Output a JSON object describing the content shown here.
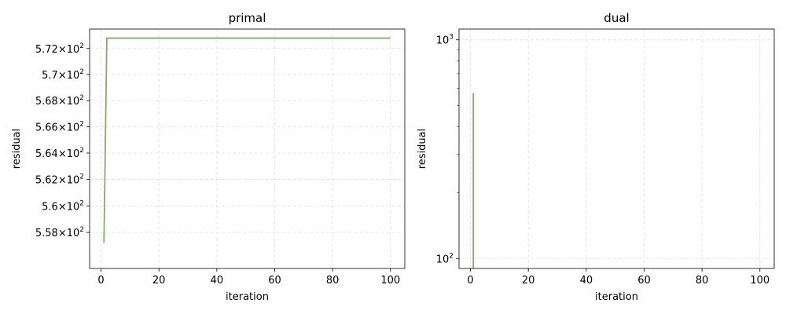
{
  "chart_data": [
    {
      "type": "line",
      "title": "primal",
      "xlabel": "iteration",
      "ylabel": "residual",
      "yscale": "log",
      "xlim": [
        -3.95,
        104.95
      ],
      "ylim": [
        555.3,
        573.5
      ],
      "x_ticks": [
        0,
        20,
        40,
        60,
        80,
        100
      ],
      "x_tick_labels": [
        "0",
        "20",
        "40",
        "60",
        "80",
        "100"
      ],
      "y_ticks": [
        558,
        560,
        562,
        564,
        566,
        568,
        570,
        572
      ],
      "y_tick_labels": [
        {
          "mantissa": "5.58",
          "base": "10",
          "exp": "2"
        },
        {
          "mantissa": "5.6",
          "base": "10",
          "exp": "2"
        },
        {
          "mantissa": "5.62",
          "base": "10",
          "exp": "2"
        },
        {
          "mantissa": "5.64",
          "base": "10",
          "exp": "2"
        },
        {
          "mantissa": "5.66",
          "base": "10",
          "exp": "2"
        },
        {
          "mantissa": "5.68",
          "base": "10",
          "exp": "2"
        },
        {
          "mantissa": "5.7",
          "base": "10",
          "exp": "2"
        },
        {
          "mantissa": "5.72",
          "base": "10",
          "exp": "2"
        }
      ],
      "grid": true,
      "series": [
        {
          "color": "#88a86e",
          "x": [
            1,
            2,
            100
          ],
          "y": [
            557.2,
            572.8,
            572.8
          ]
        }
      ]
    },
    {
      "type": "line",
      "title": "dual",
      "xlabel": "iteration",
      "ylabel": "residual",
      "yscale": "log",
      "xlim": [
        -3.95,
        104.95
      ],
      "ylim": [
        90,
        1120
      ],
      "x_ticks": [
        0,
        20,
        40,
        60,
        80,
        100
      ],
      "x_tick_labels": [
        "0",
        "20",
        "40",
        "60",
        "80",
        "100"
      ],
      "y_ticks": [
        100,
        1000
      ],
      "y_tick_labels": [
        {
          "mantissa": "",
          "base": "10",
          "exp": "2"
        },
        {
          "mantissa": "",
          "base": "10",
          "exp": "3"
        }
      ],
      "y_minor_ticks": [
        200,
        300,
        400,
        500,
        600,
        700,
        800,
        900
      ],
      "grid": true,
      "series": [
        {
          "color": "#88a86e",
          "x": [
            1,
            1
          ],
          "y": [
            570,
            90
          ]
        }
      ]
    }
  ]
}
